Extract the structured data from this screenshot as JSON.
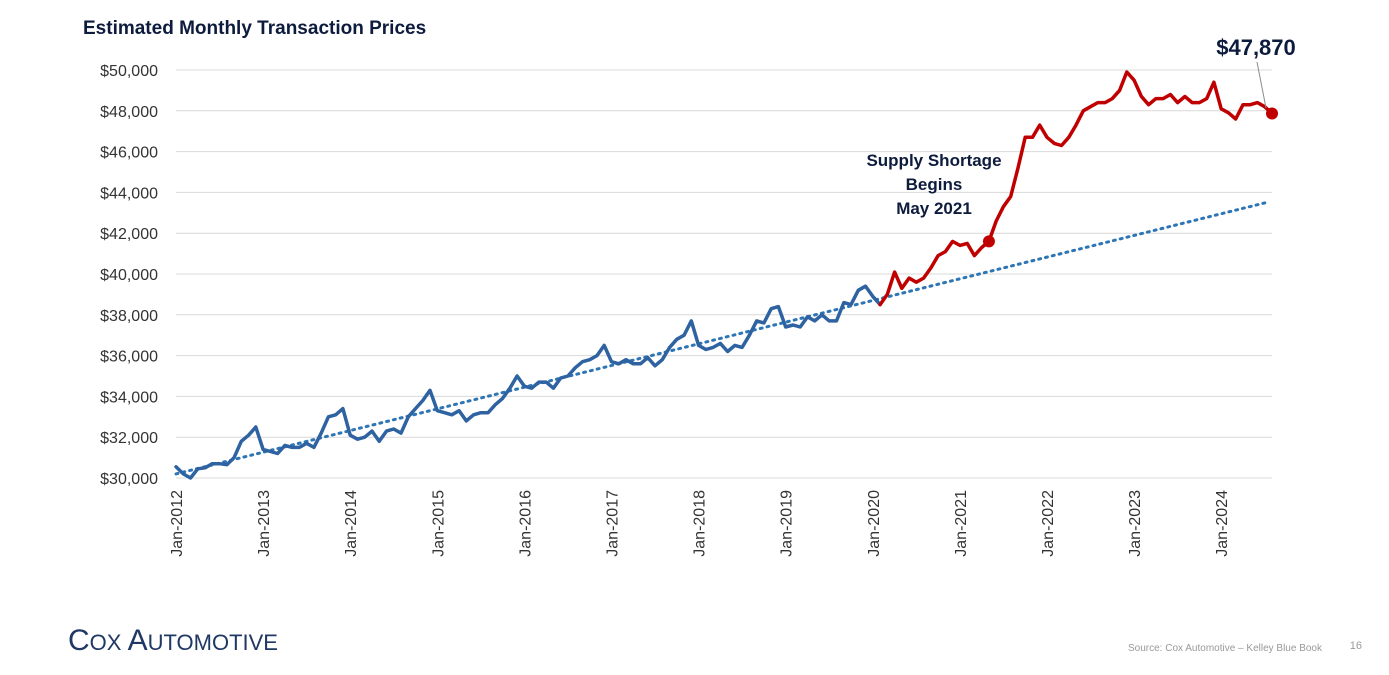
{
  "chart_data": {
    "type": "line",
    "title": "Estimated Monthly Transaction Prices",
    "xlabel": "",
    "ylabel": "",
    "ylim": [
      30000,
      50000
    ],
    "yticks": [
      30000,
      32000,
      34000,
      36000,
      38000,
      40000,
      42000,
      44000,
      46000,
      48000,
      50000
    ],
    "ytick_labels": [
      "$30,000",
      "$32,000",
      "$34,000",
      "$36,000",
      "$38,000",
      "$40,000",
      "$42,000",
      "$44,000",
      "$46,000",
      "$48,000",
      "$50,000"
    ],
    "xticks": [
      "Jan-2012",
      "Jan-2013",
      "Jan-2014",
      "Jan-2015",
      "Jan-2016",
      "Jan-2017",
      "Jan-2018",
      "Jan-2019",
      "Jan-2020",
      "Jan-2021",
      "Jan-2022",
      "Jan-2023",
      "Jan-2024"
    ],
    "x_start": "Jan-2012",
    "x_end": "Aug-2024",
    "grid": true,
    "colors": {
      "pre_2020": "#2e62a0",
      "post_2020": "#c00000",
      "trend": "#2e75b6",
      "grid": "#d9d9d9"
    },
    "series": [
      {
        "color": "#2e62a0",
        "start": "Jan-2012",
        "values": [
          30550,
          30200,
          30000,
          30450,
          30500,
          30700,
          30700,
          30650,
          31000,
          31800,
          32100,
          32500,
          31400,
          31300,
          31200,
          31600,
          31500,
          31500,
          31700,
          31500,
          32200,
          33000,
          33100,
          33400,
          32100,
          31900,
          32000,
          32300,
          31800,
          32300,
          32400,
          32200,
          33000,
          33400,
          33800,
          34300,
          33300,
          33200,
          33100,
          33300,
          32800,
          33100,
          33200,
          33200,
          33600,
          33900,
          34400,
          35000,
          34500,
          34400,
          34700,
          34700,
          34400,
          34900,
          35000,
          35400,
          35700,
          35800,
          36000,
          36500,
          35700,
          35600,
          35800,
          35600,
          35600,
          35900,
          35500,
          35800,
          36400,
          36800,
          37000,
          37700,
          36500,
          36300,
          36400,
          36600,
          36200,
          36500,
          36400,
          37000,
          37700,
          37600,
          38300,
          38400,
          37400,
          37500,
          37400,
          37900,
          37700,
          38000,
          37700,
          37700,
          38600,
          38500,
          39200,
          39400,
          38900,
          38500
        ]
      },
      {
        "color": "#c00000",
        "start": "Feb-2020",
        "values": [
          38500,
          39000,
          40100,
          39300,
          39800,
          39600,
          39800,
          40300,
          40900,
          41100,
          41600,
          41400,
          41500,
          40900,
          41300,
          41600,
          42600,
          43300,
          43800,
          45200,
          46700,
          46700,
          47300,
          46700,
          46400,
          46300,
          46700,
          47300,
          48000,
          48200,
          48400,
          48400,
          48600,
          49000,
          49900,
          49500,
          48700,
          48300,
          48600,
          48600,
          48800,
          48400,
          48700,
          48400,
          48400,
          48600,
          49400,
          48100,
          47900,
          47600,
          48300,
          48300,
          48400,
          48200,
          47870
        ]
      }
    ],
    "trendline": {
      "style": "dotted",
      "start_value": 30200,
      "end_value": 43500
    },
    "annotations": [
      {
        "text_lines": [
          "Supply Shortage",
          "Begins",
          "May 2021"
        ],
        "at": "May-2021",
        "value": 41600
      },
      {
        "text": "$47,870",
        "at": "Aug-2024",
        "value": 47870
      }
    ]
  },
  "branding": {
    "logo_text": "Cox Automotive",
    "source": "Source: Cox Automotive – Kelley Blue Book",
    "page_number": "16"
  }
}
